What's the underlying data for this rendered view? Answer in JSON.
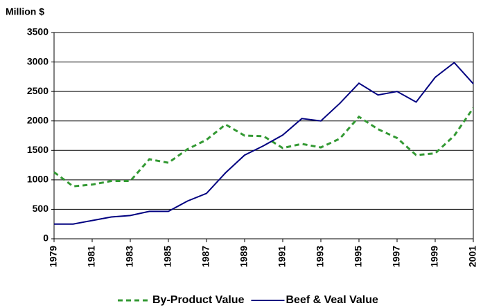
{
  "chart_data": {
    "type": "line",
    "ylabel": "Million $",
    "x": [
      1979,
      1980,
      1981,
      1982,
      1983,
      1984,
      1985,
      1986,
      1987,
      1988,
      1989,
      1990,
      1991,
      1992,
      1993,
      1994,
      1995,
      1996,
      1997,
      1998,
      1999,
      2000,
      2001
    ],
    "xlim": [
      1979,
      2001
    ],
    "xticks": [
      1979,
      1981,
      1983,
      1985,
      1987,
      1989,
      1991,
      1993,
      1995,
      1997,
      1999,
      2001
    ],
    "ylim": [
      0,
      3500
    ],
    "yticks": [
      0,
      500,
      1000,
      1500,
      2000,
      2500,
      3000,
      3500
    ],
    "grid": true,
    "legend": "bottom",
    "series": [
      {
        "name": "By-Product Value",
        "color": "#339933",
        "dash": true,
        "values": [
          1130,
          890,
          920,
          980,
          980,
          1350,
          1290,
          1520,
          1680,
          1940,
          1750,
          1740,
          1540,
          1610,
          1550,
          1700,
          2070,
          1860,
          1710,
          1420,
          1450,
          1750,
          2220
        ]
      },
      {
        "name": "Beef & Veal Value",
        "color": "#000080",
        "dash": false,
        "values": [
          250,
          250,
          310,
          370,
          395,
          465,
          465,
          640,
          770,
          1120,
          1420,
          1580,
          1760,
          2040,
          2000,
          2300,
          2640,
          2440,
          2500,
          2320,
          2740,
          2990,
          2630
        ]
      }
    ]
  }
}
